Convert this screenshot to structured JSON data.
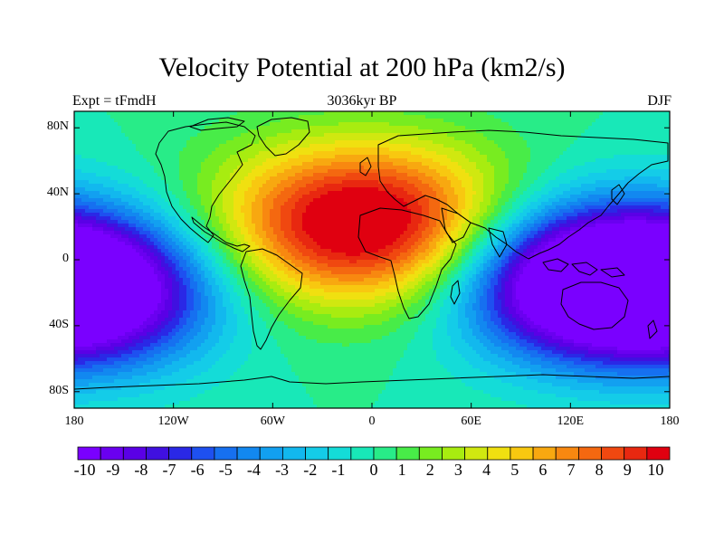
{
  "map": {
    "title": "Velocity Potential at 200 hPa (km2/s)",
    "left_label": "Expt = tFmdH",
    "center_label": "3036kyr BP",
    "right_label": "DJF",
    "projection": "cylindrical equidistant",
    "lon_range": [
      -180,
      180
    ],
    "lat_range": [
      -90,
      90
    ],
    "lat_ticks": [
      {
        "value": 80,
        "label": "80N"
      },
      {
        "value": 40,
        "label": "40N"
      },
      {
        "value": 0,
        "label": "0"
      },
      {
        "value": -40,
        "label": "40S"
      },
      {
        "value": -80,
        "label": "80S"
      }
    ],
    "lon_ticks": [
      {
        "value": -180,
        "label": "180"
      },
      {
        "value": -120,
        "label": "120W"
      },
      {
        "value": -60,
        "label": "60W"
      },
      {
        "value": 0,
        "label": "0"
      },
      {
        "value": 60,
        "label": "60E"
      },
      {
        "value": 120,
        "label": "120E"
      },
      {
        "value": 180,
        "label": "180"
      }
    ]
  },
  "field_centers": [
    {
      "name": "positive-center",
      "lon": -5,
      "lat": 22,
      "value": 10
    },
    {
      "name": "negative-center-west-pacific",
      "lon": 125,
      "lat": -12,
      "value": -10
    },
    {
      "name": "negative-center-east-pacific",
      "lon": -172,
      "lat": -18,
      "value": -10
    }
  ],
  "colorbar": {
    "levels": [
      -10,
      -9,
      -8,
      -7,
      -6,
      -5,
      -4,
      -3,
      -2,
      -1,
      0,
      1,
      2,
      3,
      4,
      5,
      6,
      7,
      8,
      9,
      10
    ],
    "labels": [
      "-10",
      "-9",
      "-8",
      "-7",
      "-6",
      "-5",
      "-4",
      "-3",
      "-2",
      "-1",
      "0",
      "1",
      "2",
      "3",
      "4",
      "5",
      "6",
      "7",
      "8",
      "9",
      "10"
    ],
    "colors": [
      "#7a00ff",
      "#6a00f0",
      "#5a00e6",
      "#4010e0",
      "#2a28e6",
      "#1e50f0",
      "#1670f0",
      "#1288f0",
      "#12a0f0",
      "#12b8ee",
      "#14cce8",
      "#14dcd8",
      "#18e8b8",
      "#28ec88",
      "#48ec48",
      "#78ec20",
      "#a8ec10",
      "#d0e810",
      "#f0e010",
      "#f8c810",
      "#f8a810",
      "#f88810",
      "#f46810",
      "#f04810",
      "#e82810",
      "#e00010"
    ]
  }
}
